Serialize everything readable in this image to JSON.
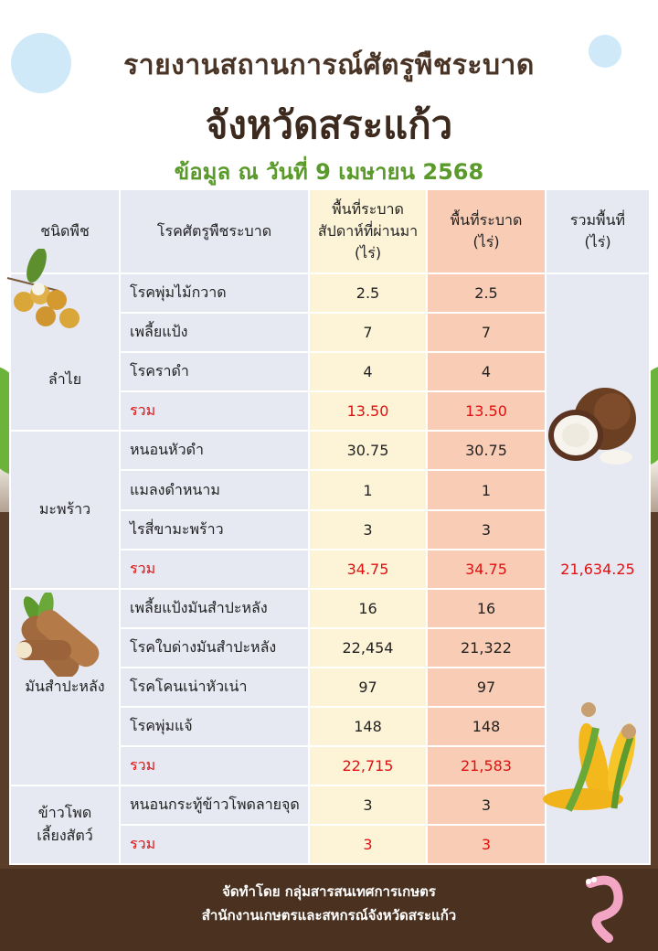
{
  "header": {
    "title_line1": "รายงานสถานการณ์ศัตรูพืชระบาด",
    "title_line2": "จังหวัดสระแก้ว",
    "date_line": "ข้อมูล ณ วันที่ 9 เมษายน 2568"
  },
  "table": {
    "headers": {
      "crop": "ชนิดพืช",
      "disease": "โรคศัตรูพืชระบาด",
      "prev_week_line1": "พื้นที่ระบาด",
      "prev_week_line2": "สัปดาห์ที่ผ่านมา",
      "prev_week_line3": "(ไร่)",
      "current_line1": "พื้นที่ระบาด",
      "current_line2": "(ไร่)",
      "total_line1": "รวมพื้นที่",
      "total_line2": "(ไร่)"
    },
    "total_area": "21,634.25",
    "groups": [
      {
        "crop": "ลำไย",
        "rows": [
          {
            "name": "โรคพุ่มไม้กวาด",
            "prev": "2.5",
            "cur": "2.5"
          },
          {
            "name": "เพลี้ยแป้ง",
            "prev": "7",
            "cur": "7"
          },
          {
            "name": "โรคราดำ",
            "prev": "4",
            "cur": "4"
          }
        ],
        "sum": {
          "label": "รวม",
          "prev": "13.50",
          "cur": "13.50"
        }
      },
      {
        "crop": "มะพร้าว",
        "rows": [
          {
            "name": "หนอนหัวดำ",
            "prev": "30.75",
            "cur": "30.75"
          },
          {
            "name": "แมลงดำหนาม",
            "prev": "1",
            "cur": "1"
          },
          {
            "name": "ไรสี่ขามะพร้าว",
            "prev": "3",
            "cur": "3"
          }
        ],
        "sum": {
          "label": "รวม",
          "prev": "34.75",
          "cur": "34.75"
        }
      },
      {
        "crop": "มันสำปะหลัง",
        "rows": [
          {
            "name": "เพลี้ยแป้งมันสำปะหลัง",
            "prev": "16",
            "cur": "16"
          },
          {
            "name": "โรคใบด่างมันสำปะหลัง",
            "prev": "22,454",
            "cur": "21,322"
          },
          {
            "name": "โรคโคนเน่าหัวเน่า",
            "prev": "97",
            "cur": "97"
          },
          {
            "name": "โรคพุ่มแจ้",
            "prev": "148",
            "cur": "148"
          }
        ],
        "sum": {
          "label": "รวม",
          "prev": "22,715",
          "cur": "21,583"
        }
      },
      {
        "crop_line1": "ข้าวโพด",
        "crop_line2": "เลี้ยงสัตว์",
        "rows": [
          {
            "name": "หนอนกระทู้ข้าวโพดลายจุด",
            "prev": "3",
            "cur": "3"
          }
        ],
        "sum": {
          "label": "รวม",
          "prev": "3",
          "cur": "3"
        }
      }
    ]
  },
  "footer": {
    "line1": "จัดทำโดย กลุ่มสารสนเทศการเกษตร",
    "line2": "สำนักงานเกษตรและสหกรณ์จังหวัดสระแก้ว"
  },
  "icons": [
    "longan-icon",
    "coconut-icon",
    "cassava-icon",
    "corn-icon",
    "worm-icon"
  ],
  "colors": {
    "title": "#4a3426",
    "date": "#5a9a2a",
    "sum_text": "#e01010",
    "prev_col": "#fdf4d8",
    "cur_col": "#f9cdb5",
    "table_bg": "#e6e8f2"
  }
}
